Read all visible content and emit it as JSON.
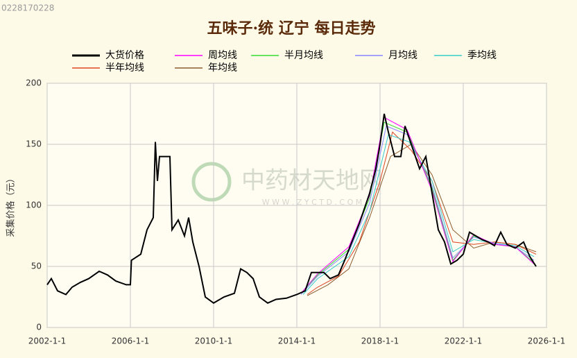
{
  "chart_data": {
    "type": "line",
    "title": "五味子·统 辽宁 每日走势",
    "corner_text": "0228170228",
    "watermark": "中药材天地网",
    "watermark_url": "W W W . Z Y C T D . C O M",
    "y_label": "采集价格（元）",
    "xlim": [
      2002,
      2026
    ],
    "xticks": [
      {
        "value": 2002,
        "label": "2002-1-1"
      },
      {
        "value": 2006,
        "label": "2006-1-1"
      },
      {
        "value": 2010,
        "label": "2010-1-1"
      },
      {
        "value": 2014,
        "label": "2014-1-1"
      },
      {
        "value": 2018,
        "label": "2018-1-1"
      },
      {
        "value": 2022,
        "label": "2022-1-1"
      },
      {
        "value": 2026,
        "label": "2026-1-1"
      }
    ],
    "ylim": [
      0,
      200
    ],
    "yticks": [
      0,
      50,
      100,
      150,
      200
    ],
    "grid": true,
    "series": [
      {
        "name": "大货价格",
        "color": "#000000",
        "x": [
          2002.0,
          2002.2,
          2002.5,
          2002.9,
          2003.2,
          2003.6,
          2004.0,
          2004.5,
          2004.9,
          2005.3,
          2005.8,
          2006.0,
          2006.05,
          2006.5,
          2006.8,
          2007.1,
          2007.2,
          2007.3,
          2007.4,
          2007.9,
          2008.0,
          2008.3,
          2008.6,
          2008.8,
          2009.0,
          2009.3,
          2009.6,
          2010.0,
          2010.5,
          2011.0,
          2011.3,
          2011.6,
          2011.9,
          2012.2,
          2012.6,
          2013.0,
          2013.5,
          2014.0,
          2014.4,
          2014.7,
          2015.3,
          2015.6,
          2016.0,
          2016.3,
          2016.6,
          2017.0,
          2017.5,
          2017.8,
          2018.0,
          2018.2,
          2018.4,
          2018.7,
          2019.0,
          2019.2,
          2019.5,
          2019.9,
          2020.2,
          2020.5,
          2020.8,
          2021.1,
          2021.4,
          2021.7,
          2022.0,
          2022.3,
          2022.6,
          2022.9,
          2023.2,
          2023.5,
          2023.8,
          2024.1,
          2024.5,
          2024.9,
          2025.2,
          2025.5
        ],
        "values": [
          35,
          40,
          30,
          27,
          33,
          37,
          40,
          46,
          43,
          38,
          35,
          35,
          55,
          60,
          80,
          90,
          152,
          120,
          140,
          140,
          80,
          88,
          75,
          90,
          70,
          50,
          25,
          20,
          25,
          28,
          48,
          45,
          40,
          25,
          20,
          23,
          24,
          27,
          30,
          45,
          45,
          40,
          43,
          55,
          68,
          85,
          110,
          130,
          150,
          175,
          160,
          140,
          140,
          165,
          150,
          130,
          140,
          110,
          80,
          70,
          52,
          55,
          60,
          78,
          75,
          72,
          70,
          67,
          78,
          68,
          65,
          70,
          58,
          50
        ]
      },
      {
        "name": "周均线",
        "color": "#ff00ff",
        "x": [
          2014.2,
          2015.0,
          2016.5,
          2017.5,
          2018.2,
          2019.3,
          2020.5,
          2021.5,
          2022.5,
          2023.5,
          2024.5,
          2025.4
        ],
        "values": [
          28,
          44,
          66,
          108,
          172,
          162,
          112,
          54,
          76,
          68,
          66,
          52
        ]
      },
      {
        "name": "半月均线",
        "color": "#33dd33",
        "x": [
          2014.2,
          2015.0,
          2016.5,
          2017.5,
          2018.2,
          2019.3,
          2020.5,
          2021.5,
          2022.5,
          2023.5,
          2024.5,
          2025.4
        ],
        "values": [
          28,
          43,
          64,
          106,
          168,
          160,
          114,
          55,
          75,
          68,
          66,
          53
        ]
      },
      {
        "name": "月均线",
        "color": "#8888ff",
        "x": [
          2014.2,
          2015.0,
          2016.5,
          2017.5,
          2018.3,
          2019.3,
          2020.5,
          2021.5,
          2022.5,
          2023.5,
          2024.5,
          2025.4
        ],
        "values": [
          27,
          42,
          62,
          102,
          165,
          158,
          116,
          57,
          74,
          69,
          66,
          55
        ]
      },
      {
        "name": "季均线",
        "color": "#33cccc",
        "x": [
          2014.3,
          2015.0,
          2016.5,
          2017.5,
          2018.4,
          2019.4,
          2020.5,
          2021.5,
          2022.5,
          2023.5,
          2024.5,
          2025.4
        ],
        "values": [
          27,
          40,
          58,
          95,
          158,
          152,
          120,
          62,
          72,
          69,
          67,
          58
        ]
      },
      {
        "name": "半年均线",
        "color": "#dd4422",
        "x": [
          2014.5,
          2015.0,
          2016.0,
          2017.0,
          2018.0,
          2018.6,
          2019.5,
          2020.5,
          2021.5,
          2022.5,
          2023.5,
          2024.5,
          2025.5
        ],
        "values": [
          27,
          33,
          42,
          70,
          120,
          160,
          145,
          120,
          70,
          68,
          70,
          68,
          60
        ]
      },
      {
        "name": "年均线",
        "color": "#8b5a2b",
        "x": [
          2014.5,
          2015.5,
          2016.5,
          2017.5,
          2018.5,
          2019.5,
          2020.5,
          2021.5,
          2022.5,
          2023.5,
          2024.5,
          2025.5
        ],
        "values": [
          26,
          35,
          48,
          90,
          140,
          150,
          125,
          80,
          65,
          70,
          68,
          62
        ]
      }
    ]
  }
}
